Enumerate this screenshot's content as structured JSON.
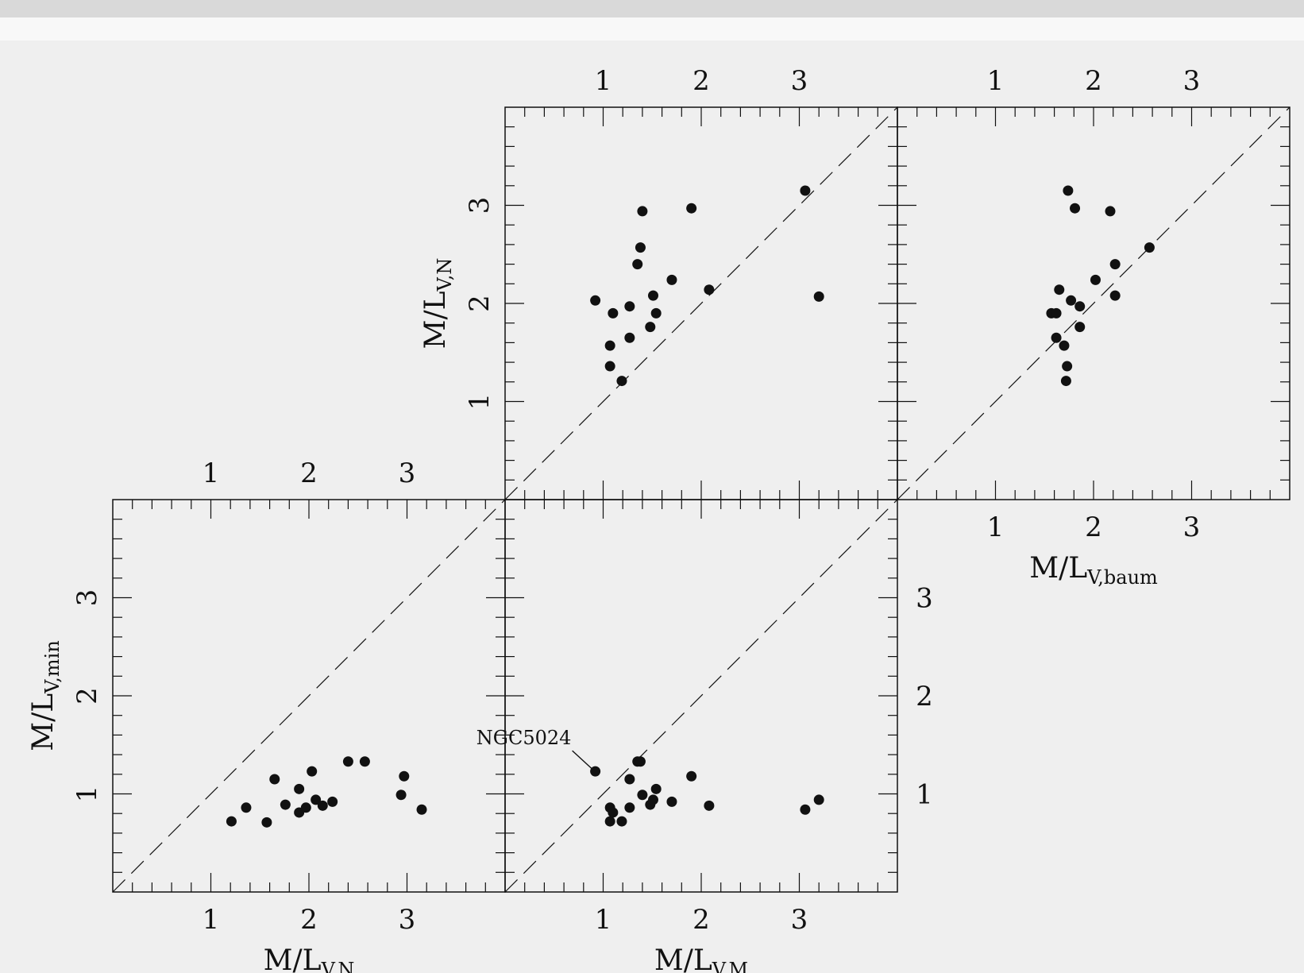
{
  "colors": {
    "ink": "#111111",
    "background": "#efefef",
    "topbar": "#d9d9d9"
  },
  "chart_data": [
    {
      "type": "scatter",
      "panel": "top-middle",
      "xlabel": "",
      "ylabel": "M/L",
      "ylabel_sub": "V,N",
      "xlim": [
        0,
        4
      ],
      "ylim": [
        0,
        4
      ],
      "x_ticklabels": [
        "1",
        "2",
        "3"
      ],
      "x_ticklabels_position": "top",
      "y_ticklabels": [
        "1",
        "2",
        "3"
      ],
      "y_ticklabels_position": "left",
      "reference_line": "y = x (dashed)",
      "points": [
        {
          "x": 0.92,
          "y": 2.03
        },
        {
          "x": 1.07,
          "y": 1.57
        },
        {
          "x": 1.07,
          "y": 1.36
        },
        {
          "x": 1.1,
          "y": 1.9
        },
        {
          "x": 1.19,
          "y": 1.21
        },
        {
          "x": 1.27,
          "y": 1.65
        },
        {
          "x": 1.27,
          "y": 1.97
        },
        {
          "x": 1.35,
          "y": 2.4
        },
        {
          "x": 1.38,
          "y": 2.57
        },
        {
          "x": 1.4,
          "y": 2.94
        },
        {
          "x": 1.48,
          "y": 1.76
        },
        {
          "x": 1.51,
          "y": 2.08
        },
        {
          "x": 1.54,
          "y": 1.9
        },
        {
          "x": 1.7,
          "y": 2.24
        },
        {
          "x": 1.9,
          "y": 2.97
        },
        {
          "x": 2.08,
          "y": 2.14
        },
        {
          "x": 3.06,
          "y": 3.15
        },
        {
          "x": 3.2,
          "y": 2.07
        }
      ]
    },
    {
      "type": "scatter",
      "panel": "top-right",
      "xlabel": "M/L",
      "xlabel_sub": "V,baum",
      "ylabel": "",
      "xlim": [
        0,
        4
      ],
      "ylim": [
        0,
        4
      ],
      "x_ticklabels": [
        "1",
        "2",
        "3"
      ],
      "x_ticklabels_position": "top and bottom",
      "reference_line": "y = x (dashed)",
      "points": [
        {
          "x": 1.57,
          "y": 1.9
        },
        {
          "x": 1.62,
          "y": 1.9
        },
        {
          "x": 1.62,
          "y": 1.65
        },
        {
          "x": 1.65,
          "y": 2.14
        },
        {
          "x": 1.7,
          "y": 1.57
        },
        {
          "x": 1.72,
          "y": 1.21
        },
        {
          "x": 1.73,
          "y": 1.36
        },
        {
          "x": 1.74,
          "y": 3.15
        },
        {
          "x": 1.77,
          "y": 2.03
        },
        {
          "x": 1.81,
          "y": 2.97
        },
        {
          "x": 1.86,
          "y": 1.76
        },
        {
          "x": 1.86,
          "y": 1.97
        },
        {
          "x": 2.02,
          "y": 2.24
        },
        {
          "x": 2.17,
          "y": 2.94
        },
        {
          "x": 2.22,
          "y": 2.4
        },
        {
          "x": 2.22,
          "y": 2.08
        },
        {
          "x": 2.57,
          "y": 2.57
        }
      ]
    },
    {
      "type": "scatter",
      "panel": "bottom-left",
      "xlabel": "M/L",
      "xlabel_sub": "V,N",
      "ylabel": "M/L",
      "ylabel_sub": "V,min",
      "xlim": [
        0,
        4
      ],
      "ylim": [
        0,
        4
      ],
      "x_ticklabels": [
        "1",
        "2",
        "3"
      ],
      "x_ticklabels_position": "top and bottom",
      "y_ticklabels": [
        "1",
        "2",
        "3"
      ],
      "y_ticklabels_position": "left",
      "reference_line": "y = x (dashed)",
      "points": [
        {
          "x": 1.21,
          "y": 0.72
        },
        {
          "x": 1.36,
          "y": 0.86
        },
        {
          "x": 1.57,
          "y": 0.71
        },
        {
          "x": 1.65,
          "y": 1.15
        },
        {
          "x": 1.76,
          "y": 0.89
        },
        {
          "x": 1.9,
          "y": 0.81
        },
        {
          "x": 1.9,
          "y": 1.05
        },
        {
          "x": 1.97,
          "y": 0.86
        },
        {
          "x": 2.03,
          "y": 1.23
        },
        {
          "x": 2.07,
          "y": 0.94
        },
        {
          "x": 2.14,
          "y": 0.88
        },
        {
          "x": 2.24,
          "y": 0.92
        },
        {
          "x": 2.4,
          "y": 1.33
        },
        {
          "x": 2.57,
          "y": 1.33
        },
        {
          "x": 2.94,
          "y": 0.99
        },
        {
          "x": 2.97,
          "y": 1.18
        },
        {
          "x": 3.15,
          "y": 0.84
        }
      ]
    },
    {
      "type": "scatter",
      "panel": "bottom-middle",
      "xlabel": "M/L",
      "xlabel_sub": "V,M",
      "ylabel": "",
      "xlim": [
        0,
        4
      ],
      "ylim": [
        0,
        4
      ],
      "x_ticklabels": [
        "1",
        "2",
        "3"
      ],
      "x_ticklabels_position": "bottom",
      "y_ticklabels": [
        "1",
        "2",
        "3"
      ],
      "y_ticklabels_position": "right",
      "reference_line": "y = x (dashed)",
      "annotation": {
        "text": "NGC5024",
        "x": 0.92,
        "y": 1.23
      },
      "points": [
        {
          "x": 0.92,
          "y": 1.23
        },
        {
          "x": 1.07,
          "y": 0.86
        },
        {
          "x": 1.07,
          "y": 0.72
        },
        {
          "x": 1.1,
          "y": 0.81
        },
        {
          "x": 1.19,
          "y": 0.72
        },
        {
          "x": 1.27,
          "y": 1.15
        },
        {
          "x": 1.27,
          "y": 0.86
        },
        {
          "x": 1.35,
          "y": 1.33
        },
        {
          "x": 1.38,
          "y": 1.33
        },
        {
          "x": 1.4,
          "y": 0.99
        },
        {
          "x": 1.48,
          "y": 0.89
        },
        {
          "x": 1.51,
          "y": 0.94
        },
        {
          "x": 1.54,
          "y": 1.05
        },
        {
          "x": 1.7,
          "y": 0.92
        },
        {
          "x": 1.9,
          "y": 1.18
        },
        {
          "x": 2.08,
          "y": 0.88
        },
        {
          "x": 3.06,
          "y": 0.84
        },
        {
          "x": 3.2,
          "y": 0.94
        }
      ]
    }
  ]
}
